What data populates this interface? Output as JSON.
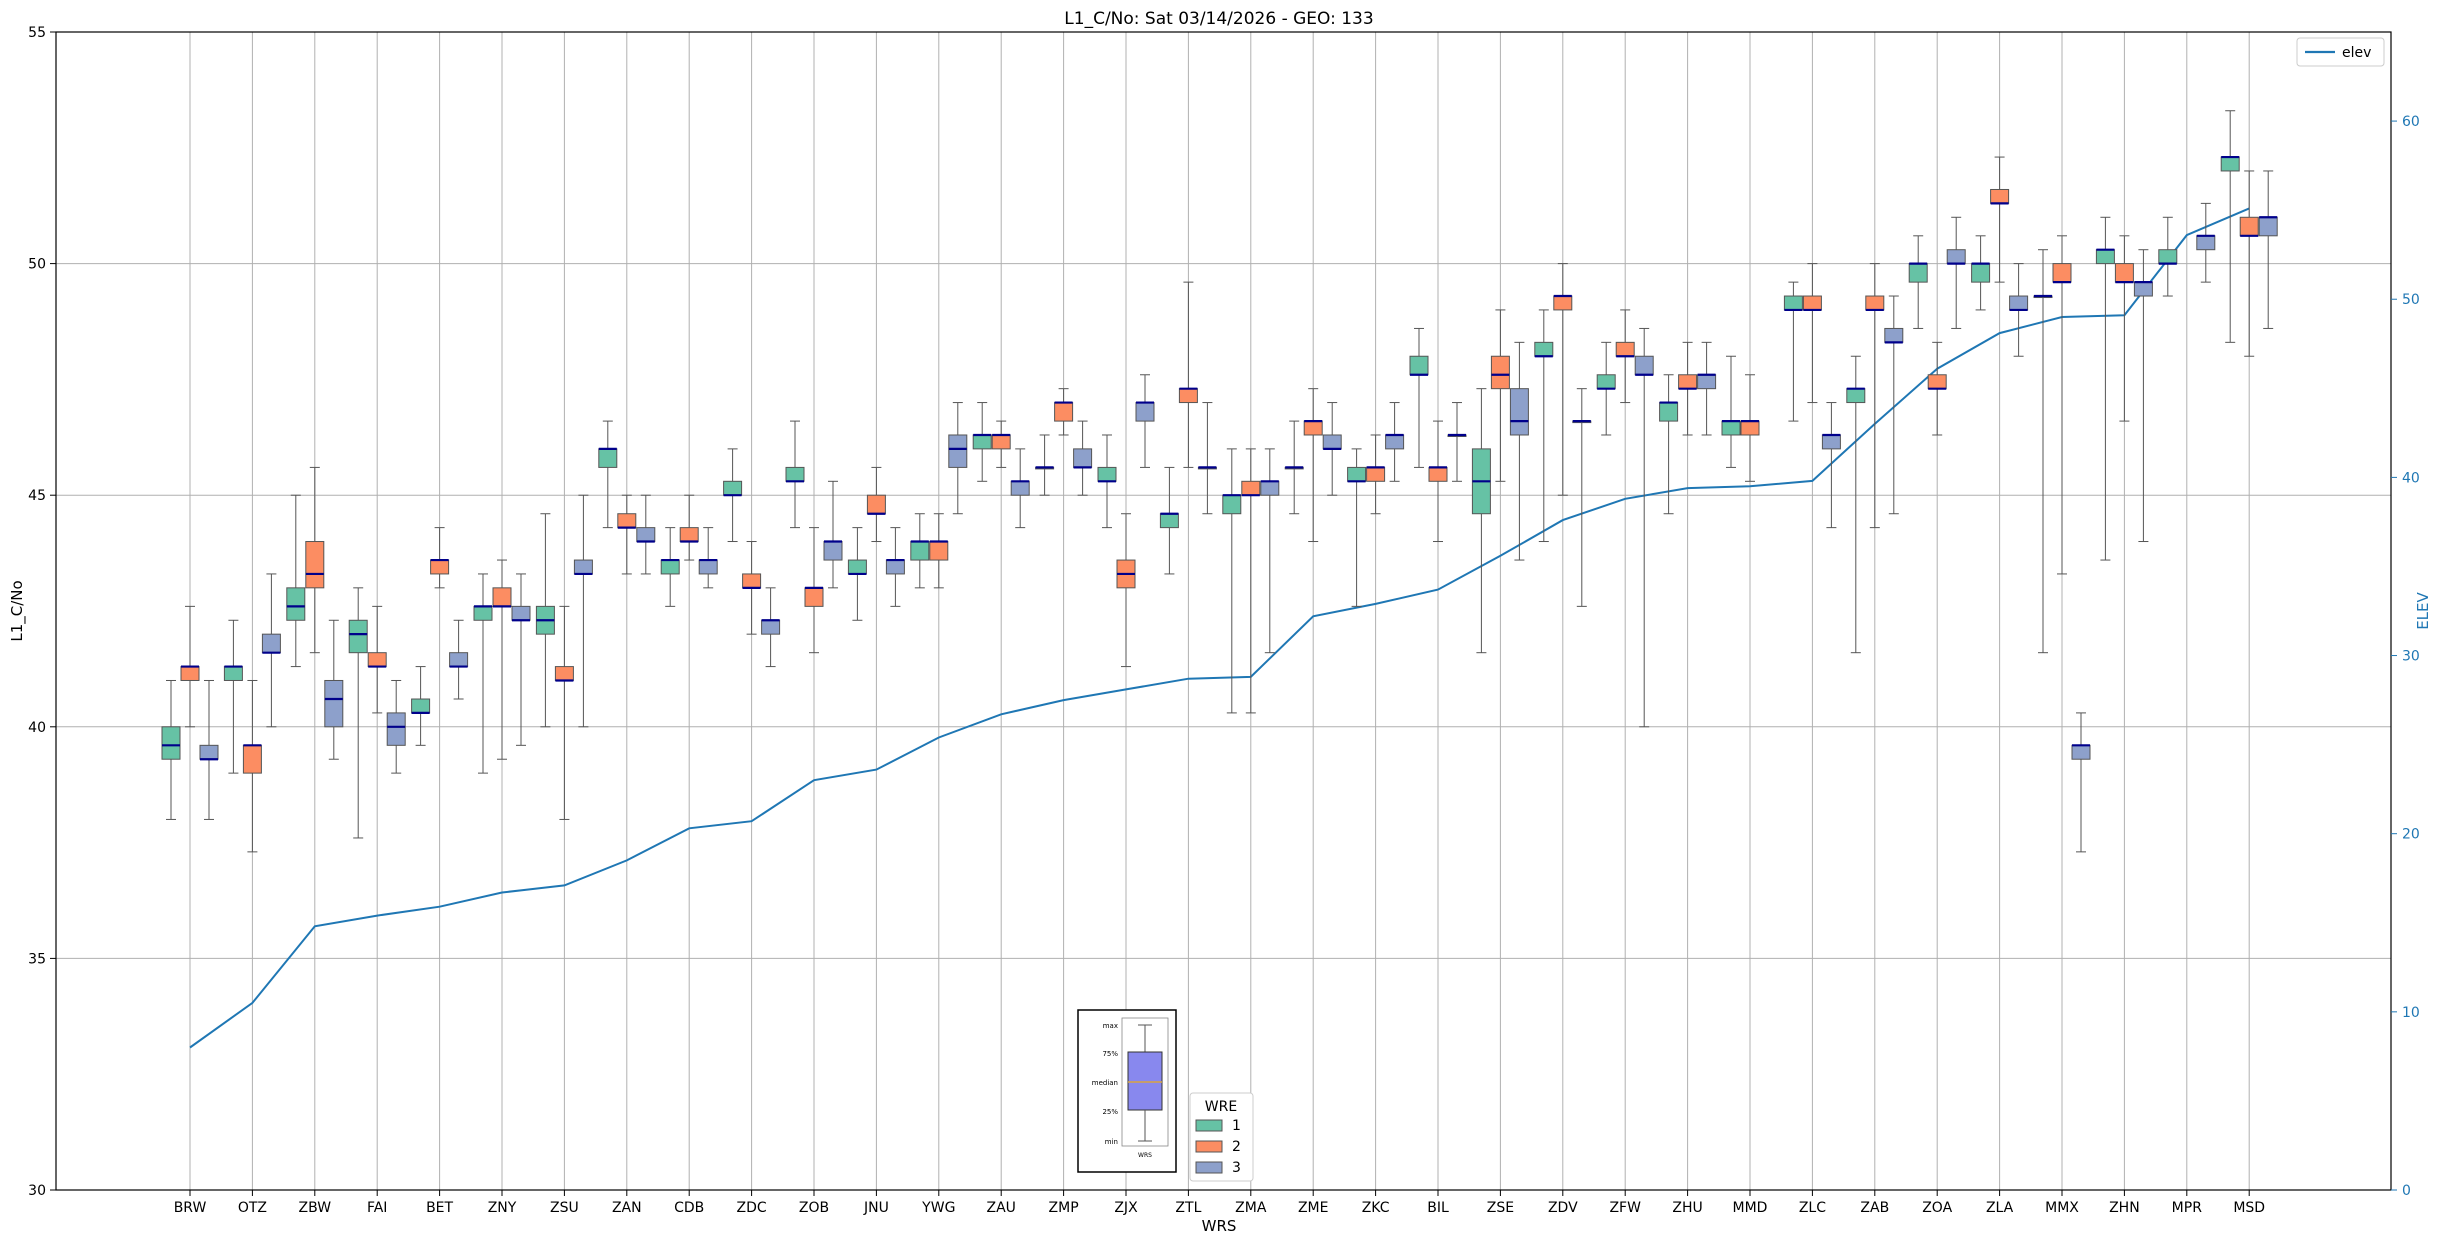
{
  "chart_data": {
    "type": "boxplot",
    "title": "L1_C/No: Sat 03/14/2026 - GEO: 133",
    "xlabel": "WRS",
    "ylabel": "L1_C/No",
    "ylabel_right": "ELEV",
    "ylim": [
      30,
      55
    ],
    "yticks": [
      30,
      35,
      40,
      45,
      50,
      55
    ],
    "ylim_right": [
      0,
      65
    ],
    "yticks_right": [
      0,
      10,
      20,
      30,
      40,
      50,
      60
    ],
    "grid": true,
    "categories": [
      "BRW",
      "OTZ",
      "ZBW",
      "FAI",
      "BET",
      "ZNY",
      "ZSU",
      "ZAN",
      "CDB",
      "ZDC",
      "ZOB",
      "JNU",
      "YWG",
      "ZAU",
      "ZMP",
      "ZJX",
      "ZTL",
      "ZMA",
      "ZME",
      "ZKC",
      "BIL",
      "ZSE",
      "ZDV",
      "ZFW",
      "ZHU",
      "MMD",
      "ZLC",
      "ZAB",
      "ZOA",
      "ZLA",
      "MMX",
      "ZHN",
      "MPR",
      "MSD"
    ],
    "wre_colors": {
      "1": "#66c2a5",
      "2": "#fc8d62",
      "3": "#8da0cb"
    },
    "median_color": "#00008b",
    "elev_color": "#1f77b4",
    "boxes": [
      {
        "station": "BRW",
        "wre": 1,
        "min": 38.0,
        "q1": 39.3,
        "median": 39.6,
        "q3": 40.0,
        "max": 41.0
      },
      {
        "station": "BRW",
        "wre": 2,
        "min": 40.0,
        "q1": 41.0,
        "median": 41.3,
        "q3": 41.3,
        "max": 42.6
      },
      {
        "station": "BRW",
        "wre": 3,
        "min": 38.0,
        "q1": 39.3,
        "median": 39.3,
        "q3": 39.6,
        "max": 41.0
      },
      {
        "station": "OTZ",
        "wre": 1,
        "min": 39.0,
        "q1": 41.0,
        "median": 41.3,
        "q3": 41.3,
        "max": 42.3
      },
      {
        "station": "OTZ",
        "wre": 2,
        "min": 37.3,
        "q1": 39.0,
        "median": 39.6,
        "q3": 39.6,
        "max": 41.0
      },
      {
        "station": "OTZ",
        "wre": 3,
        "min": 40.0,
        "q1": 41.6,
        "median": 41.6,
        "q3": 42.0,
        "max": 43.3
      },
      {
        "station": "ZBW",
        "wre": 1,
        "min": 41.3,
        "q1": 42.3,
        "median": 42.6,
        "q3": 43.0,
        "max": 45.0
      },
      {
        "station": "ZBW",
        "wre": 2,
        "min": 41.6,
        "q1": 43.0,
        "median": 43.3,
        "q3": 44.0,
        "max": 45.6
      },
      {
        "station": "ZBW",
        "wre": 3,
        "min": 39.3,
        "q1": 40.0,
        "median": 40.6,
        "q3": 41.0,
        "max": 42.3
      },
      {
        "station": "FAI",
        "wre": 1,
        "min": 37.6,
        "q1": 41.6,
        "median": 42.0,
        "q3": 42.3,
        "max": 43.0
      },
      {
        "station": "FAI",
        "wre": 2,
        "min": 40.3,
        "q1": 41.3,
        "median": 41.3,
        "q3": 41.6,
        "max": 42.6
      },
      {
        "station": "FAI",
        "wre": 3,
        "min": 39.0,
        "q1": 39.6,
        "median": 40.0,
        "q3": 40.3,
        "max": 41.0
      },
      {
        "station": "BET",
        "wre": 1,
        "min": 39.6,
        "q1": 40.3,
        "median": 40.3,
        "q3": 40.6,
        "max": 41.3
      },
      {
        "station": "BET",
        "wre": 2,
        "min": 43.0,
        "q1": 43.3,
        "median": 43.6,
        "q3": 43.6,
        "max": 44.3
      },
      {
        "station": "BET",
        "wre": 3,
        "min": 40.6,
        "q1": 41.3,
        "median": 41.3,
        "q3": 41.6,
        "max": 42.3
      },
      {
        "station": "ZNY",
        "wre": 1,
        "min": 39.0,
        "q1": 42.3,
        "median": 42.6,
        "q3": 42.6,
        "max": 43.3
      },
      {
        "station": "ZNY",
        "wre": 2,
        "min": 39.3,
        "q1": 42.6,
        "median": 42.6,
        "q3": 43.0,
        "max": 43.6
      },
      {
        "station": "ZNY",
        "wre": 3,
        "min": 39.6,
        "q1": 42.3,
        "median": 42.3,
        "q3": 42.6,
        "max": 43.3
      },
      {
        "station": "ZSU",
        "wre": 1,
        "min": 40.0,
        "q1": 42.0,
        "median": 42.3,
        "q3": 42.6,
        "max": 44.6
      },
      {
        "station": "ZSU",
        "wre": 2,
        "min": 38.0,
        "q1": 41.0,
        "median": 41.0,
        "q3": 41.3,
        "max": 42.6
      },
      {
        "station": "ZSU",
        "wre": 3,
        "min": 40.0,
        "q1": 43.3,
        "median": 43.3,
        "q3": 43.6,
        "max": 45.0
      },
      {
        "station": "ZAN",
        "wre": 1,
        "min": 44.3,
        "q1": 45.6,
        "median": 46.0,
        "q3": 46.0,
        "max": 46.6
      },
      {
        "station": "ZAN",
        "wre": 2,
        "min": 43.3,
        "q1": 44.3,
        "median": 44.3,
        "q3": 44.6,
        "max": 45.0
      },
      {
        "station": "ZAN",
        "wre": 3,
        "min": 43.3,
        "q1": 44.0,
        "median": 44.0,
        "q3": 44.3,
        "max": 45.0
      },
      {
        "station": "CDB",
        "wre": 1,
        "min": 42.6,
        "q1": 43.3,
        "median": 43.6,
        "q3": 43.6,
        "max": 44.3
      },
      {
        "station": "CDB",
        "wre": 2,
        "min": 43.6,
        "q1": 44.0,
        "median": 44.0,
        "q3": 44.3,
        "max": 45.0
      },
      {
        "station": "CDB",
        "wre": 3,
        "min": 43.0,
        "q1": 43.3,
        "median": 43.6,
        "q3": 43.6,
        "max": 44.3
      },
      {
        "station": "ZDC",
        "wre": 1,
        "min": 44.0,
        "q1": 45.0,
        "median": 45.0,
        "q3": 45.3,
        "max": 46.0
      },
      {
        "station": "ZDC",
        "wre": 2,
        "min": 42.0,
        "q1": 43.0,
        "median": 43.0,
        "q3": 43.3,
        "max": 44.0
      },
      {
        "station": "ZDC",
        "wre": 3,
        "min": 41.3,
        "q1": 42.0,
        "median": 42.3,
        "q3": 42.3,
        "max": 43.0
      },
      {
        "station": "ZOB",
        "wre": 1,
        "min": 44.3,
        "q1": 45.3,
        "median": 45.3,
        "q3": 45.6,
        "max": 46.6
      },
      {
        "station": "ZOB",
        "wre": 2,
        "min": 41.6,
        "q1": 42.6,
        "median": 43.0,
        "q3": 43.0,
        "max": 44.3
      },
      {
        "station": "ZOB",
        "wre": 3,
        "min": 43.0,
        "q1": 43.6,
        "median": 44.0,
        "q3": 44.0,
        "max": 45.3
      },
      {
        "station": "JNU",
        "wre": 1,
        "min": 42.3,
        "q1": 43.3,
        "median": 43.3,
        "q3": 43.6,
        "max": 44.3
      },
      {
        "station": "JNU",
        "wre": 2,
        "min": 44.0,
        "q1": 44.6,
        "median": 44.6,
        "q3": 45.0,
        "max": 45.6
      },
      {
        "station": "JNU",
        "wre": 3,
        "min": 42.6,
        "q1": 43.3,
        "median": 43.6,
        "q3": 43.6,
        "max": 44.3
      },
      {
        "station": "YWG",
        "wre": 1,
        "min": 43.0,
        "q1": 43.6,
        "median": 44.0,
        "q3": 44.0,
        "max": 44.6
      },
      {
        "station": "YWG",
        "wre": 2,
        "min": 43.0,
        "q1": 43.6,
        "median": 44.0,
        "q3": 44.0,
        "max": 44.6
      },
      {
        "station": "YWG",
        "wre": 3,
        "min": 44.6,
        "q1": 45.6,
        "median": 46.0,
        "q3": 46.3,
        "max": 47.0
      },
      {
        "station": "ZAU",
        "wre": 1,
        "min": 45.3,
        "q1": 46.0,
        "median": 46.3,
        "q3": 46.3,
        "max": 47.0
      },
      {
        "station": "ZAU",
        "wre": 2,
        "min": 45.6,
        "q1": 46.0,
        "median": 46.3,
        "q3": 46.3,
        "max": 46.6
      },
      {
        "station": "ZAU",
        "wre": 3,
        "min": 44.3,
        "q1": 45.0,
        "median": 45.3,
        "q3": 45.3,
        "max": 46.0
      },
      {
        "station": "ZMP",
        "wre": 1,
        "min": 45.0,
        "q1": 45.6,
        "median": 45.6,
        "q3": 45.6,
        "max": 46.3
      },
      {
        "station": "ZMP",
        "wre": 2,
        "min": 46.3,
        "q1": 46.6,
        "median": 47.0,
        "q3": 47.0,
        "max": 47.3
      },
      {
        "station": "ZMP",
        "wre": 3,
        "min": 45.0,
        "q1": 45.6,
        "median": 45.6,
        "q3": 46.0,
        "max": 46.6
      },
      {
        "station": "ZJX",
        "wre": 1,
        "min": 44.3,
        "q1": 45.3,
        "median": 45.3,
        "q3": 45.6,
        "max": 46.3
      },
      {
        "station": "ZJX",
        "wre": 2,
        "min": 41.3,
        "q1": 43.0,
        "median": 43.3,
        "q3": 43.6,
        "max": 44.6
      },
      {
        "station": "ZJX",
        "wre": 3,
        "min": 45.6,
        "q1": 46.6,
        "median": 47.0,
        "q3": 47.0,
        "max": 47.6
      },
      {
        "station": "ZTL",
        "wre": 1,
        "min": 43.3,
        "q1": 44.3,
        "median": 44.6,
        "q3": 44.6,
        "max": 45.6
      },
      {
        "station": "ZTL",
        "wre": 2,
        "min": 45.6,
        "q1": 47.0,
        "median": 47.3,
        "q3": 47.3,
        "max": 49.6
      },
      {
        "station": "ZTL",
        "wre": 3,
        "min": 44.6,
        "q1": 45.6,
        "median": 45.6,
        "q3": 45.6,
        "max": 47.0
      },
      {
        "station": "ZMA",
        "wre": 1,
        "min": 40.3,
        "q1": 44.6,
        "median": 45.0,
        "q3": 45.0,
        "max": 46.0
      },
      {
        "station": "ZMA",
        "wre": 2,
        "min": 40.3,
        "q1": 45.0,
        "median": 45.0,
        "q3": 45.3,
        "max": 46.0
      },
      {
        "station": "ZMA",
        "wre": 3,
        "min": 41.6,
        "q1": 45.0,
        "median": 45.3,
        "q3": 45.3,
        "max": 46.0
      },
      {
        "station": "ZME",
        "wre": 1,
        "min": 44.6,
        "q1": 45.6,
        "median": 45.6,
        "q3": 45.6,
        "max": 46.6
      },
      {
        "station": "ZME",
        "wre": 2,
        "min": 44.0,
        "q1": 46.3,
        "median": 46.6,
        "q3": 46.6,
        "max": 47.3
      },
      {
        "station": "ZME",
        "wre": 3,
        "min": 45.0,
        "q1": 46.0,
        "median": 46.0,
        "q3": 46.3,
        "max": 47.0
      },
      {
        "station": "ZKC",
        "wre": 1,
        "min": 42.6,
        "q1": 45.3,
        "median": 45.3,
        "q3": 45.6,
        "max": 46.0
      },
      {
        "station": "ZKC",
        "wre": 2,
        "min": 44.6,
        "q1": 45.3,
        "median": 45.6,
        "q3": 45.6,
        "max": 46.3
      },
      {
        "station": "ZKC",
        "wre": 3,
        "min": 45.3,
        "q1": 46.0,
        "median": 46.3,
        "q3": 46.3,
        "max": 47.0
      },
      {
        "station": "BIL",
        "wre": 1,
        "min": 45.6,
        "q1": 47.6,
        "median": 47.6,
        "q3": 48.0,
        "max": 48.6
      },
      {
        "station": "BIL",
        "wre": 2,
        "min": 44.0,
        "q1": 45.3,
        "median": 45.6,
        "q3": 45.6,
        "max": 46.6
      },
      {
        "station": "BIL",
        "wre": 3,
        "min": 45.3,
        "q1": 46.3,
        "median": 46.3,
        "q3": 46.3,
        "max": 47.0
      },
      {
        "station": "ZSE",
        "wre": 1,
        "min": 41.6,
        "q1": 44.6,
        "median": 45.3,
        "q3": 46.0,
        "max": 47.3
      },
      {
        "station": "ZSE",
        "wre": 2,
        "min": 45.3,
        "q1": 47.3,
        "median": 47.6,
        "q3": 48.0,
        "max": 49.0
      },
      {
        "station": "ZSE",
        "wre": 3,
        "min": 43.6,
        "q1": 46.3,
        "median": 46.6,
        "q3": 47.3,
        "max": 48.3
      },
      {
        "station": "ZDV",
        "wre": 1,
        "min": 44.0,
        "q1": 48.0,
        "median": 48.0,
        "q3": 48.3,
        "max": 49.0
      },
      {
        "station": "ZDV",
        "wre": 2,
        "min": 45.0,
        "q1": 49.0,
        "median": 49.3,
        "q3": 49.3,
        "max": 50.0
      },
      {
        "station": "ZDV",
        "wre": 3,
        "min": 42.6,
        "q1": 46.6,
        "median": 46.6,
        "q3": 46.6,
        "max": 47.3
      },
      {
        "station": "ZFW",
        "wre": 1,
        "min": 46.3,
        "q1": 47.3,
        "median": 47.3,
        "q3": 47.6,
        "max": 48.3
      },
      {
        "station": "ZFW",
        "wre": 2,
        "min": 47.0,
        "q1": 48.0,
        "median": 48.0,
        "q3": 48.3,
        "max": 49.0
      },
      {
        "station": "ZFW",
        "wre": 3,
        "min": 40.0,
        "q1": 47.6,
        "median": 47.6,
        "q3": 48.0,
        "max": 48.6
      },
      {
        "station": "ZHU",
        "wre": 1,
        "min": 44.6,
        "q1": 46.6,
        "median": 47.0,
        "q3": 47.0,
        "max": 47.6
      },
      {
        "station": "ZHU",
        "wre": 2,
        "min": 46.3,
        "q1": 47.3,
        "median": 47.3,
        "q3": 47.6,
        "max": 48.3
      },
      {
        "station": "ZHU",
        "wre": 3,
        "min": 46.3,
        "q1": 47.3,
        "median": 47.6,
        "q3": 47.6,
        "max": 48.3
      },
      {
        "station": "MMD",
        "wre": 1,
        "min": 45.6,
        "q1": 46.3,
        "median": 46.6,
        "q3": 46.6,
        "max": 48.0
      },
      {
        "station": "MMD",
        "wre": 2,
        "min": 45.3,
        "q1": 46.3,
        "median": 46.6,
        "q3": 46.6,
        "max": 47.6
      },
      {
        "station": "ZLC",
        "wre": 1,
        "min": 46.6,
        "q1": 49.0,
        "median": 49.0,
        "q3": 49.3,
        "max": 49.6
      },
      {
        "station": "ZLC",
        "wre": 2,
        "min": 47.0,
        "q1": 49.0,
        "median": 49.0,
        "q3": 49.3,
        "max": 50.0
      },
      {
        "station": "ZLC",
        "wre": 3,
        "min": 44.3,
        "q1": 46.0,
        "median": 46.3,
        "q3": 46.3,
        "max": 47.0
      },
      {
        "station": "ZAB",
        "wre": 1,
        "min": 41.6,
        "q1": 47.0,
        "median": 47.3,
        "q3": 47.3,
        "max": 48.0
      },
      {
        "station": "ZAB",
        "wre": 2,
        "min": 44.3,
        "q1": 49.0,
        "median": 49.0,
        "q3": 49.3,
        "max": 50.0
      },
      {
        "station": "ZAB",
        "wre": 3,
        "min": 44.6,
        "q1": 48.3,
        "median": 48.3,
        "q3": 48.6,
        "max": 49.3
      },
      {
        "station": "ZOA",
        "wre": 1,
        "min": 48.6,
        "q1": 49.6,
        "median": 50.0,
        "q3": 50.0,
        "max": 50.6
      },
      {
        "station": "ZOA",
        "wre": 2,
        "min": 46.3,
        "q1": 47.3,
        "median": 47.3,
        "q3": 47.6,
        "max": 48.3
      },
      {
        "station": "ZOA",
        "wre": 3,
        "min": 48.6,
        "q1": 50.0,
        "median": 50.0,
        "q3": 50.3,
        "max": 51.0
      },
      {
        "station": "ZLA",
        "wre": 1,
        "min": 49.0,
        "q1": 49.6,
        "median": 50.0,
        "q3": 50.0,
        "max": 50.6
      },
      {
        "station": "ZLA",
        "wre": 2,
        "min": 49.6,
        "q1": 51.3,
        "median": 51.3,
        "q3": 51.6,
        "max": 52.3
      },
      {
        "station": "ZLA",
        "wre": 3,
        "min": 48.0,
        "q1": 49.0,
        "median": 49.0,
        "q3": 49.3,
        "max": 50.0
      },
      {
        "station": "MMX",
        "wre": 1,
        "min": 41.6,
        "q1": 49.3,
        "median": 49.3,
        "q3": 49.3,
        "max": 50.3
      },
      {
        "station": "MMX",
        "wre": 2,
        "min": 43.3,
        "q1": 49.6,
        "median": 49.6,
        "q3": 50.0,
        "max": 50.6
      },
      {
        "station": "MMX",
        "wre": 3,
        "min": 37.3,
        "q1": 39.3,
        "median": 39.6,
        "q3": 39.6,
        "max": 40.3
      },
      {
        "station": "ZHN",
        "wre": 1,
        "min": 43.6,
        "q1": 50.0,
        "median": 50.3,
        "q3": 50.3,
        "max": 51.0
      },
      {
        "station": "ZHN",
        "wre": 2,
        "min": 46.6,
        "q1": 49.6,
        "median": 49.6,
        "q3": 50.0,
        "max": 50.6
      },
      {
        "station": "ZHN",
        "wre": 3,
        "min": 44.0,
        "q1": 49.3,
        "median": 49.6,
        "q3": 49.6,
        "max": 50.3
      },
      {
        "station": "MPR",
        "wre": 1,
        "min": 49.3,
        "q1": 50.0,
        "median": 50.0,
        "q3": 50.3,
        "max": 51.0
      },
      {
        "station": "MPR",
        "wre": 3,
        "min": 49.6,
        "q1": 50.3,
        "median": 50.6,
        "q3": 50.6,
        "max": 51.3
      },
      {
        "station": "MSD",
        "wre": 1,
        "min": 48.3,
        "q1": 52.0,
        "median": 52.3,
        "q3": 52.3,
        "max": 53.3
      },
      {
        "station": "MSD",
        "wre": 2,
        "min": 48.0,
        "q1": 50.6,
        "median": 50.6,
        "q3": 51.0,
        "max": 52.0
      },
      {
        "station": "MSD",
        "wre": 3,
        "min": 48.6,
        "q1": 50.6,
        "median": 51.0,
        "q3": 51.0,
        "max": 52.0
      }
    ],
    "elev": {
      "name": "elev",
      "values": [
        8.0,
        10.5,
        14.8,
        15.4,
        15.9,
        16.7,
        17.1,
        18.5,
        20.3,
        20.7,
        23.0,
        23.6,
        25.4,
        26.7,
        27.5,
        28.1,
        28.7,
        28.8,
        32.2,
        32.9,
        33.7,
        35.6,
        37.6,
        38.8,
        39.4,
        39.5,
        39.8,
        43.0,
        46.1,
        48.1,
        49.0,
        49.1,
        53.6,
        55.1
      ]
    },
    "legend": {
      "title": "WRE",
      "entries": [
        "1",
        "2",
        "3"
      ],
      "placement": "lower-center"
    },
    "elev_legend": {
      "entries": [
        "elev"
      ],
      "placement": "top-right"
    },
    "inset_key": {
      "labels": [
        "max",
        "75%",
        "median",
        "25%",
        "min"
      ],
      "xlabel": "WRS"
    }
  }
}
